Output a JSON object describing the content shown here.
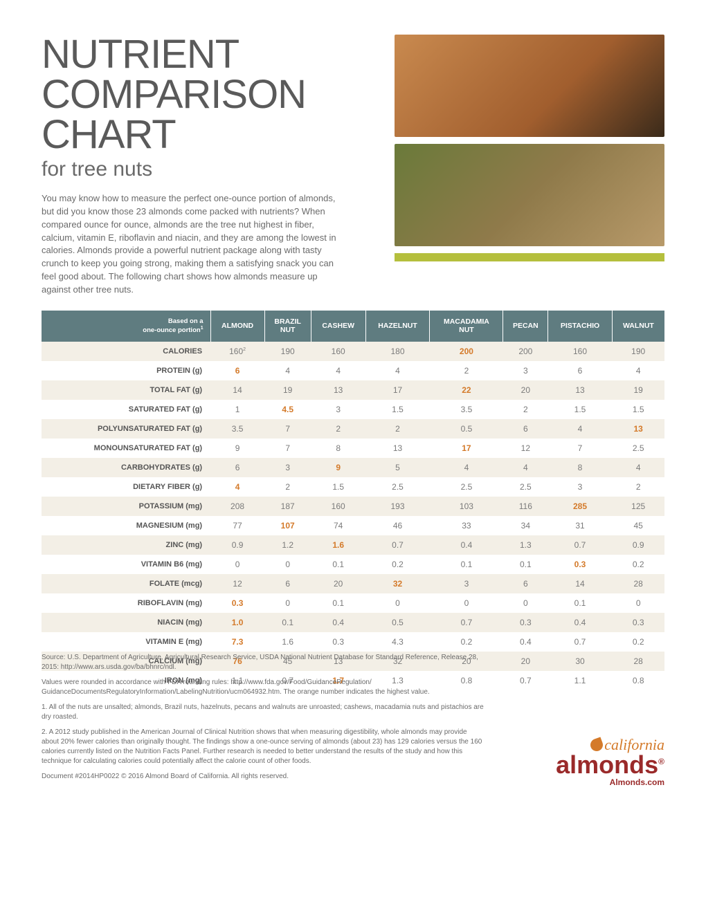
{
  "title": "NUTRIENT COMPARISON CHART",
  "subtitle": "for tree nuts",
  "intro": "You may know how to measure the perfect one-ounce portion of almonds, but did you know those 23 almonds come packed with nutrients? When compared ounce for ounce, almonds are the tree nut highest in fiber, calcium, vitamin E, riboflavin and niacin, and they are among the lowest in calories. Almonds provide a powerful nutrient package along with tasty crunch to keep you going strong, making them a satisfying snack you can feel good about. The following chart shows how almonds measure up against other tree nuts.",
  "table": {
    "header_note_html": "Based on a<br>one-ounce portion<sup>1</sup>",
    "columns": [
      "ALMOND",
      "BRAZIL NUT",
      "CASHEW",
      "HAZELNUT",
      "MACADAMIA NUT",
      "PECAN",
      "PISTACHIO",
      "WALNUT"
    ],
    "rows": [
      {
        "label": "CALORIES",
        "cells": [
          {
            "v": "160",
            "sup": "2"
          },
          {
            "v": "190"
          },
          {
            "v": "160"
          },
          {
            "v": "180"
          },
          {
            "v": "200",
            "hi": true
          },
          {
            "v": "200"
          },
          {
            "v": "160"
          },
          {
            "v": "190"
          }
        ]
      },
      {
        "label": "PROTEIN (g)",
        "cells": [
          {
            "v": "6",
            "hi": true
          },
          {
            "v": "4"
          },
          {
            "v": "4"
          },
          {
            "v": "4"
          },
          {
            "v": "2"
          },
          {
            "v": "3"
          },
          {
            "v": "6"
          },
          {
            "v": "4"
          }
        ]
      },
      {
        "label": "TOTAL FAT (g)",
        "cells": [
          {
            "v": "14"
          },
          {
            "v": "19"
          },
          {
            "v": "13"
          },
          {
            "v": "17"
          },
          {
            "v": "22",
            "hi": true
          },
          {
            "v": "20"
          },
          {
            "v": "13"
          },
          {
            "v": "19"
          }
        ]
      },
      {
        "label": "SATURATED FAT (g)",
        "cells": [
          {
            "v": "1"
          },
          {
            "v": "4.5",
            "hi": true
          },
          {
            "v": "3"
          },
          {
            "v": "1.5"
          },
          {
            "v": "3.5"
          },
          {
            "v": "2"
          },
          {
            "v": "1.5"
          },
          {
            "v": "1.5"
          }
        ]
      },
      {
        "label": "POLYUNSATURATED FAT (g)",
        "cells": [
          {
            "v": "3.5"
          },
          {
            "v": "7"
          },
          {
            "v": "2"
          },
          {
            "v": "2"
          },
          {
            "v": "0.5"
          },
          {
            "v": "6"
          },
          {
            "v": "4"
          },
          {
            "v": "13",
            "hi": true
          }
        ]
      },
      {
        "label": "MONOUNSATURATED FAT (g)",
        "cells": [
          {
            "v": "9"
          },
          {
            "v": "7"
          },
          {
            "v": "8"
          },
          {
            "v": "13"
          },
          {
            "v": "17",
            "hi": true
          },
          {
            "v": "12"
          },
          {
            "v": "7"
          },
          {
            "v": "2.5"
          }
        ]
      },
      {
        "label": "CARBOHYDRATES (g)",
        "cells": [
          {
            "v": "6"
          },
          {
            "v": "3"
          },
          {
            "v": "9",
            "hi": true
          },
          {
            "v": "5"
          },
          {
            "v": "4"
          },
          {
            "v": "4"
          },
          {
            "v": "8"
          },
          {
            "v": "4"
          }
        ]
      },
      {
        "label": "DIETARY FIBER (g)",
        "cells": [
          {
            "v": "4",
            "hi": true
          },
          {
            "v": "2"
          },
          {
            "v": "1.5"
          },
          {
            "v": "2.5"
          },
          {
            "v": "2.5"
          },
          {
            "v": "2.5"
          },
          {
            "v": "3"
          },
          {
            "v": "2"
          }
        ]
      },
      {
        "label": "POTASSIUM (mg)",
        "cells": [
          {
            "v": "208"
          },
          {
            "v": "187"
          },
          {
            "v": "160"
          },
          {
            "v": "193"
          },
          {
            "v": "103"
          },
          {
            "v": "116"
          },
          {
            "v": "285",
            "hi": true
          },
          {
            "v": "125"
          }
        ]
      },
      {
        "label": "MAGNESIUM (mg)",
        "cells": [
          {
            "v": "77"
          },
          {
            "v": "107",
            "hi": true
          },
          {
            "v": "74"
          },
          {
            "v": "46"
          },
          {
            "v": "33"
          },
          {
            "v": "34"
          },
          {
            "v": "31"
          },
          {
            "v": "45"
          }
        ]
      },
      {
        "label": "ZINC (mg)",
        "cells": [
          {
            "v": "0.9"
          },
          {
            "v": "1.2"
          },
          {
            "v": "1.6",
            "hi": true
          },
          {
            "v": "0.7"
          },
          {
            "v": "0.4"
          },
          {
            "v": "1.3"
          },
          {
            "v": "0.7"
          },
          {
            "v": "0.9"
          }
        ]
      },
      {
        "label": "VITAMIN B6 (mg)",
        "cells": [
          {
            "v": "0"
          },
          {
            "v": "0"
          },
          {
            "v": "0.1"
          },
          {
            "v": "0.2"
          },
          {
            "v": "0.1"
          },
          {
            "v": "0.1"
          },
          {
            "v": "0.3",
            "hi": true
          },
          {
            "v": "0.2"
          }
        ]
      },
      {
        "label": "FOLATE (mcg)",
        "cells": [
          {
            "v": "12"
          },
          {
            "v": "6"
          },
          {
            "v": "20"
          },
          {
            "v": "32",
            "hi": true
          },
          {
            "v": "3"
          },
          {
            "v": "6"
          },
          {
            "v": "14"
          },
          {
            "v": "28"
          }
        ]
      },
      {
        "label": "RIBOFLAVIN (mg)",
        "cells": [
          {
            "v": "0.3",
            "hi": true
          },
          {
            "v": "0"
          },
          {
            "v": "0.1"
          },
          {
            "v": "0"
          },
          {
            "v": "0"
          },
          {
            "v": "0"
          },
          {
            "v": "0.1"
          },
          {
            "v": "0"
          }
        ]
      },
      {
        "label": "NIACIN (mg)",
        "cells": [
          {
            "v": "1.0",
            "hi": true
          },
          {
            "v": "0.1"
          },
          {
            "v": "0.4"
          },
          {
            "v": "0.5"
          },
          {
            "v": "0.7"
          },
          {
            "v": "0.3"
          },
          {
            "v": "0.4"
          },
          {
            "v": "0.3"
          }
        ]
      },
      {
        "label": "VITAMIN E (mg)",
        "cells": [
          {
            "v": "7.3",
            "hi": true
          },
          {
            "v": "1.6"
          },
          {
            "v": "0.3"
          },
          {
            "v": "4.3"
          },
          {
            "v": "0.2"
          },
          {
            "v": "0.4"
          },
          {
            "v": "0.7"
          },
          {
            "v": "0.2"
          }
        ]
      },
      {
        "label": "CALCIUM (mg)",
        "cells": [
          {
            "v": "76",
            "hi": true
          },
          {
            "v": "45"
          },
          {
            "v": "13"
          },
          {
            "v": "32"
          },
          {
            "v": "20"
          },
          {
            "v": "20"
          },
          {
            "v": "30"
          },
          {
            "v": "28"
          }
        ]
      },
      {
        "label": "IRON (mg)",
        "cells": [
          {
            "v": "1.1"
          },
          {
            "v": "0.7"
          },
          {
            "v": "1.7",
            "hi": true
          },
          {
            "v": "1.3"
          },
          {
            "v": "0.8"
          },
          {
            "v": "0.7"
          },
          {
            "v": "1.1"
          },
          {
            "v": "0.8"
          }
        ]
      }
    ],
    "colors": {
      "header_bg": "#5f7c80",
      "row_odd_bg": "#f3efe6",
      "highlight": "#d47a2a",
      "accent_bar": "#b5bf3d"
    }
  },
  "footnotes": [
    "Source: U.S. Department of Agriculture, Agricultural Research Service, USDA National Nutrient Database for Standard Reference, Release 28, 2015: http://www.ars.usda.gov/ba/bhnrc/ndl.",
    "Values were rounded in accordance with FDA rounding rules: http://www.fda.gov/Food/GuidanceRegulation/ GuidanceDocumentsRegulatoryInformation/LabelingNutrition/ucm064932.htm. The orange number indicates the highest value.",
    "1. All of the nuts are unsalted; almonds, Brazil nuts, hazelnuts, pecans and walnuts are unroasted; cashews, macadamia nuts and pistachios are dry roasted.",
    "2. A 2012 study published in the American Journal of Clinical Nutrition shows that when measuring digestibility, whole almonds may provide about 20% fewer calories than originally thought. The findings show a one-ounce serving of almonds (about 23) has 129 calories versus the 160 calories currently listed on the Nutrition Facts Panel. Further research is needed to better understand the results of the study and how this technique for calculating calories could potentially affect the calorie count of other foods.",
    "Document #2014HP0022 © 2016 Almond Board of California. All rights reserved."
  ],
  "logo": {
    "top": "california",
    "main": "almonds",
    "url": "Almonds.com"
  }
}
